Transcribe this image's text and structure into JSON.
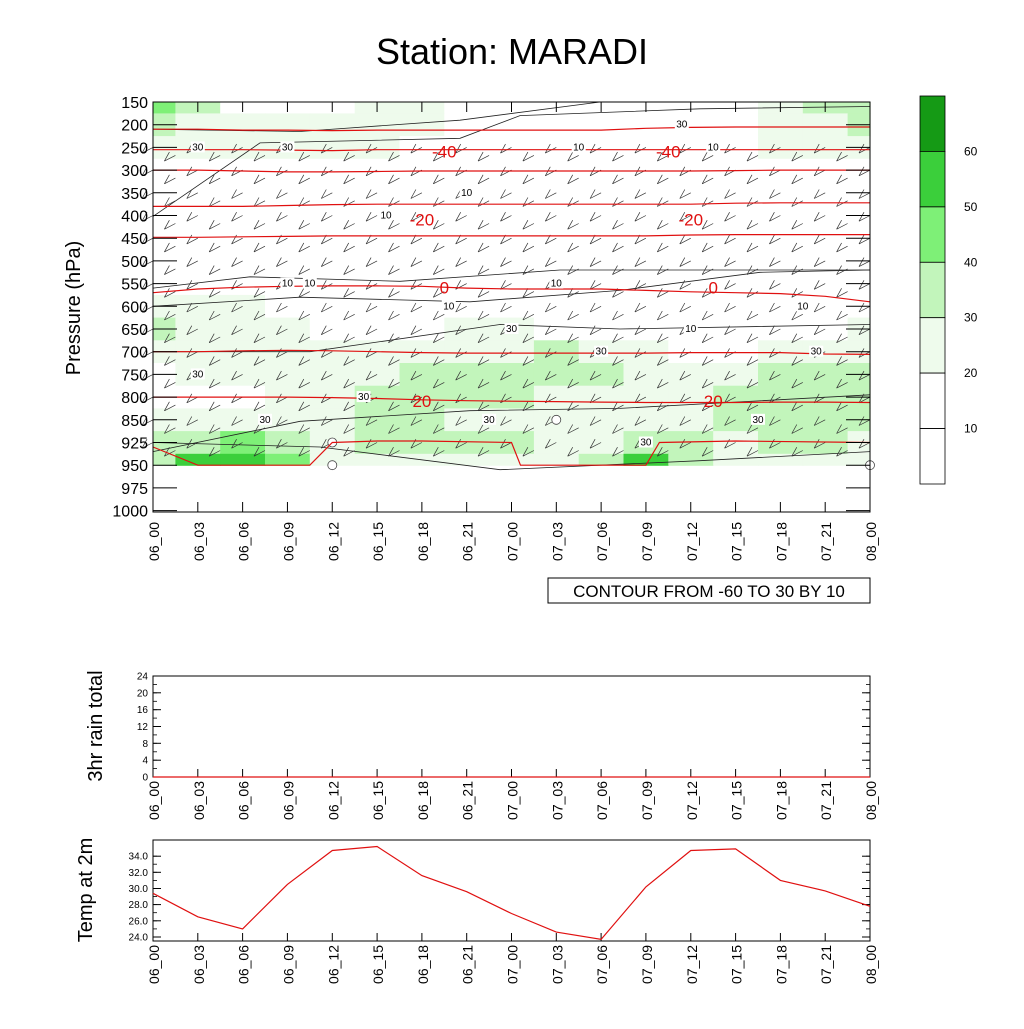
{
  "title": "Station: MARADI",
  "colors": {
    "temp_contour": "#e01010",
    "wind_contour": "#222222",
    "barb": "#333333",
    "line_series": "#e01010",
    "fill_levels": [
      "#ffffff",
      "#ffffff",
      "#eefbec",
      "#c2f5bb",
      "#7ef077",
      "#3bcf3b",
      "#159a15"
    ]
  },
  "x_ticks": [
    "06_00",
    "06_03",
    "06_06",
    "06_09",
    "06_12",
    "06_15",
    "06_18",
    "06_21",
    "07_00",
    "07_03",
    "07_06",
    "07_09",
    "07_12",
    "07_15",
    "07_18",
    "07_21",
    "08_00"
  ],
  "chart_data": [
    {
      "type": "heatmap",
      "name": "cross-section",
      "ylabel": "Pressure (hPa)",
      "y_ticks": [
        "150",
        "200",
        "250",
        "300",
        "350",
        "400",
        "450",
        "500",
        "550",
        "600",
        "650",
        "700",
        "750",
        "800",
        "850",
        "925",
        "950",
        "975",
        "1000"
      ],
      "caption": "CONTOUR FROM -60 TO 30 BY 10",
      "colorbar": {
        "labels": [
          "10",
          "20",
          "30",
          "40",
          "50",
          "60"
        ]
      },
      "wind_speed_levels": [
        [
          40,
          30,
          10,
          10,
          10,
          20,
          20,
          10,
          10,
          10,
          10,
          10,
          10,
          10,
          20,
          30,
          30
        ],
        [
          30,
          25,
          20,
          20,
          20,
          20,
          20,
          15,
          10,
          10,
          10,
          10,
          10,
          15,
          20,
          25,
          30
        ],
        [
          20,
          20,
          20,
          20,
          20,
          20,
          15,
          10,
          10,
          10,
          10,
          10,
          10,
          10,
          20,
          20,
          20
        ],
        [
          15,
          10,
          10,
          10,
          10,
          10,
          10,
          10,
          10,
          10,
          10,
          10,
          10,
          10,
          10,
          10,
          10
        ],
        [
          10,
          10,
          10,
          10,
          10,
          10,
          10,
          10,
          10,
          10,
          10,
          10,
          10,
          10,
          10,
          10,
          10
        ],
        [
          15,
          10,
          10,
          10,
          10,
          10,
          10,
          10,
          10,
          10,
          10,
          10,
          10,
          10,
          10,
          10,
          10
        ],
        [
          10,
          10,
          10,
          10,
          10,
          10,
          10,
          10,
          10,
          10,
          10,
          10,
          10,
          10,
          10,
          10,
          10
        ],
        [
          10,
          10,
          10,
          10,
          10,
          10,
          10,
          10,
          10,
          10,
          10,
          10,
          10,
          10,
          10,
          10,
          10
        ],
        [
          10,
          10,
          10,
          10,
          10,
          10,
          10,
          10,
          10,
          10,
          10,
          10,
          10,
          10,
          10,
          10,
          10
        ],
        [
          25,
          20,
          20,
          15,
          10,
          10,
          10,
          10,
          10,
          10,
          10,
          10,
          10,
          10,
          10,
          10,
          10
        ],
        [
          30,
          25,
          20,
          20,
          15,
          15,
          15,
          20,
          20,
          15,
          10,
          10,
          10,
          10,
          10,
          15,
          20
        ],
        [
          20,
          20,
          20,
          20,
          20,
          20,
          20,
          20,
          25,
          30,
          25,
          20,
          15,
          10,
          20,
          25,
          25
        ],
        [
          15,
          20,
          20,
          25,
          25,
          25,
          30,
          35,
          30,
          30,
          30,
          20,
          20,
          25,
          30,
          30,
          30
        ],
        [
          15,
          15,
          15,
          20,
          25,
          30,
          35,
          30,
          30,
          25,
          20,
          20,
          25,
          30,
          30,
          30,
          30
        ],
        [
          20,
          20,
          20,
          25,
          25,
          30,
          30,
          25,
          25,
          20,
          20,
          20,
          25,
          30,
          30,
          30,
          30
        ],
        [
          35,
          35,
          40,
          30,
          25,
          30,
          30,
          30,
          30,
          25,
          20,
          35,
          30,
          25,
          30,
          30,
          25
        ],
        [
          35,
          50,
          55,
          40,
          25,
          25,
          25,
          25,
          25,
          25,
          30,
          55,
          35,
          25,
          25,
          25,
          25
        ]
      ],
      "wind_contour_labels": [
        {
          "text": "30",
          "t": 1,
          "p": "250"
        },
        {
          "text": "30",
          "t": 3,
          "p": "250"
        },
        {
          "text": "30",
          "t": 11.8,
          "p": "200"
        },
        {
          "text": "10",
          "t": 9.5,
          "p": "250"
        },
        {
          "text": "10",
          "t": 12.5,
          "p": "250"
        },
        {
          "text": "10",
          "t": 5.2,
          "p": "400"
        },
        {
          "text": "10",
          "t": 7,
          "p": "350"
        },
        {
          "text": "10",
          "t": 3,
          "p": "550"
        },
        {
          "text": "10",
          "t": 3.5,
          "p": "550"
        },
        {
          "text": "10",
          "t": 6.6,
          "p": "600"
        },
        {
          "text": "10",
          "t": 9,
          "p": "550"
        },
        {
          "text": "10",
          "t": 12,
          "p": "650"
        },
        {
          "text": "10",
          "t": 14.5,
          "p": "600"
        },
        {
          "text": "30",
          "t": 8,
          "p": "650"
        },
        {
          "text": "30",
          "t": 10,
          "p": "700"
        },
        {
          "text": "30",
          "t": 14.8,
          "p": "700"
        },
        {
          "text": "30",
          "t": 1,
          "p": "750"
        },
        {
          "text": "30",
          "t": 4.7,
          "p": "800"
        },
        {
          "text": "30",
          "t": 7.5,
          "p": "850"
        },
        {
          "text": "30",
          "t": 2.5,
          "p": "850"
        },
        {
          "text": "30",
          "t": 11,
          "p": "925"
        },
        {
          "text": "30",
          "t": 13.5,
          "p": "850"
        }
      ],
      "temp_contours": [
        {
          "level": "-40",
          "labels": [
            {
              "text": "-40",
              "t": 6.5
            },
            {
              "text": "-40",
              "t": 11.5
            }
          ]
        },
        {
          "level": "-20",
          "labels": [
            {
              "text": "-20",
              "t": 6
            },
            {
              "text": "-20",
              "t": 12
            }
          ]
        },
        {
          "level": "0",
          "labels": [
            {
              "text": "0",
              "t": 6.5
            },
            {
              "text": "0",
              "t": 12.5
            }
          ]
        },
        {
          "level": "20",
          "labels": [
            {
              "text": "20",
              "t": 6
            },
            {
              "text": "20",
              "t": 12.5
            }
          ]
        }
      ],
      "temp_lines_pressure": {
        "-60": [
          210,
          210,
          212,
          212,
          213,
          212,
          212,
          212,
          212,
          212,
          212,
          208,
          206,
          205,
          205,
          205,
          205
        ],
        "-50": [
          255,
          255,
          255,
          256,
          257,
          255,
          255,
          255,
          255,
          255,
          255,
          255,
          255,
          255,
          255,
          255,
          255
        ],
        "-40": [
          300,
          300,
          302,
          304,
          304,
          303,
          302,
          302,
          302,
          302,
          302,
          302,
          302,
          301,
          300,
          300,
          300
        ],
        "-30": [
          380,
          380,
          380,
          378,
          376,
          375,
          375,
          375,
          375,
          375,
          375,
          375,
          375,
          373,
          372,
          372,
          372
        ],
        "-20": [
          448,
          448,
          447,
          446,
          445,
          445,
          445,
          445,
          445,
          445,
          445,
          445,
          443,
          442,
          442,
          442,
          442
        ],
        "-10": [
          570,
          562,
          558,
          556,
          555,
          555,
          556,
          560,
          562,
          562,
          562,
          565,
          568,
          570,
          572,
          578,
          590
        ],
        "0": [
          700,
          700,
          698,
          697,
          698,
          700,
          702,
          703,
          703,
          703,
          703,
          703,
          702,
          702,
          702,
          705,
          706
        ],
        "10": [
          800,
          800,
          800,
          800,
          801,
          803,
          806,
          808,
          809,
          810,
          811,
          812,
          812,
          812,
          811,
          811,
          812
        ]
      },
      "wind_barbs_dir_deg": 60
    },
    {
      "type": "line",
      "name": "rain",
      "ylabel": "3hr rain total",
      "y_ticks": [
        "0",
        "4",
        "8",
        "12",
        "16",
        "20",
        "24"
      ],
      "ylim": [
        0,
        24
      ],
      "x": [
        "06_00",
        "06_03",
        "06_06",
        "06_09",
        "06_12",
        "06_15",
        "06_18",
        "06_21",
        "07_00",
        "07_03",
        "07_06",
        "07_09",
        "07_12",
        "07_15",
        "07_18",
        "07_21",
        "08_00"
      ],
      "values": [
        0,
        0,
        0,
        0,
        0,
        0,
        0,
        0,
        0,
        0,
        0,
        0,
        0,
        0,
        0,
        0,
        0
      ]
    },
    {
      "type": "line",
      "name": "temp2m",
      "ylabel": "Temp at 2m",
      "y_ticks": [
        "24.0",
        "26.0",
        "28.0",
        "30.0",
        "32.0",
        "34.0"
      ],
      "ylim": [
        23.5,
        36.0
      ],
      "x": [
        "06_00",
        "06_03",
        "06_06",
        "06_09",
        "06_12",
        "06_15",
        "06_18",
        "06_21",
        "07_00",
        "07_03",
        "07_06",
        "07_09",
        "07_12",
        "07_15",
        "07_18",
        "07_21",
        "08_00"
      ],
      "values": [
        29.4,
        26.5,
        25.0,
        30.5,
        34.7,
        35.2,
        31.6,
        29.6,
        26.9,
        24.6,
        23.7,
        30.2,
        34.7,
        34.9,
        31.0,
        29.7,
        27.8
      ]
    }
  ]
}
